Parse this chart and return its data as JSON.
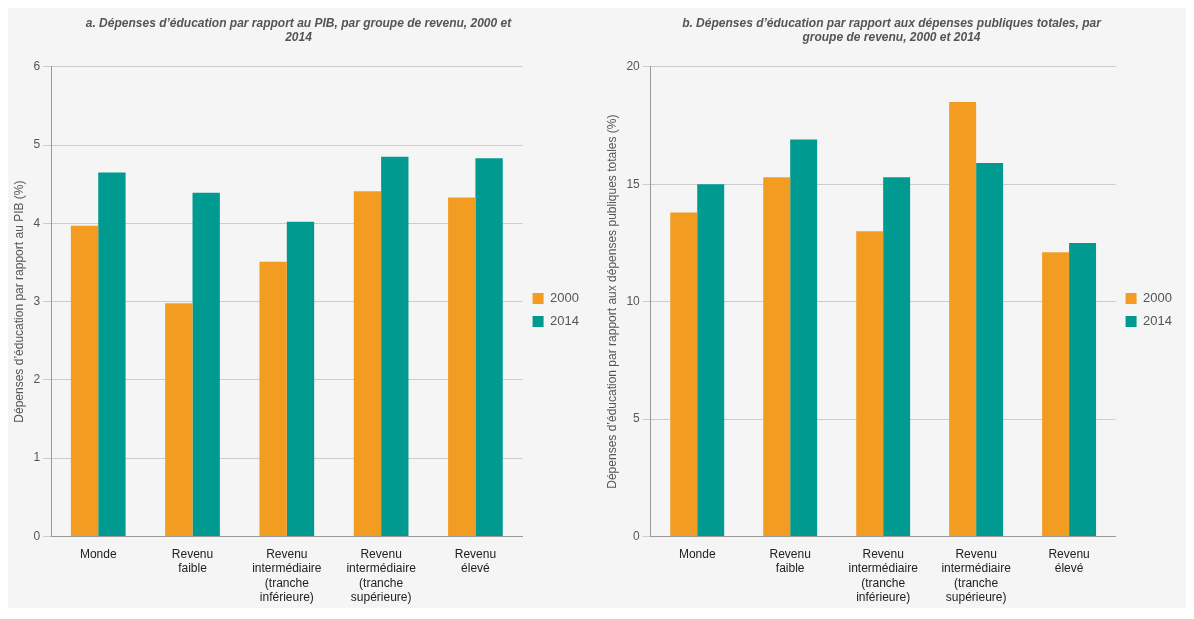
{
  "chart_data": [
    {
      "type": "bar",
      "title": "a. Dépenses d’éducation par rapport au PIB, par groupe de revenu, 2000 et 2014",
      "ylabel": "Dépenses d’éducation par rapport au PIB (%)",
      "categories": [
        "Monde",
        "Revenu faible",
        "Revenu intermédiaire (tranche inférieure)",
        "Revenu intermédiaire (tranche supérieure)",
        "Revenu élevé"
      ],
      "series": [
        {
          "name": "2000",
          "color": "#f39c22",
          "values": [
            3.97,
            2.98,
            3.51,
            4.41,
            4.33
          ]
        },
        {
          "name": "2014",
          "color": "#009a90",
          "values": [
            4.65,
            4.39,
            4.02,
            4.85,
            4.83
          ]
        }
      ],
      "ylim": [
        0,
        6
      ],
      "yticks": [
        0,
        1,
        2,
        3,
        4,
        5,
        6
      ],
      "grid": "y",
      "legend": "right"
    },
    {
      "type": "bar",
      "title": "b. Dépenses d’éducation par rapport aux dépenses publiques totales, par groupe de revenu, 2000 et 2014",
      "ylabel": "Dépenses d’éducation par rapport aux dépenses publiques totales (%)",
      "categories": [
        "Monde",
        "Revenu faible",
        "Revenu intermédiaire (tranche inférieure)",
        "Revenu intermédiaire (tranche supérieure)",
        "Revenu élevé"
      ],
      "series": [
        {
          "name": "2000",
          "color": "#f39c22",
          "values": [
            13.8,
            15.3,
            13.0,
            18.5,
            12.1
          ]
        },
        {
          "name": "2014",
          "color": "#009a90",
          "values": [
            15.0,
            16.9,
            15.3,
            15.9,
            12.5
          ]
        }
      ],
      "ylim": [
        0,
        20
      ],
      "yticks": [
        0,
        5,
        10,
        15,
        20
      ],
      "grid": "y",
      "legend": "right"
    }
  ]
}
